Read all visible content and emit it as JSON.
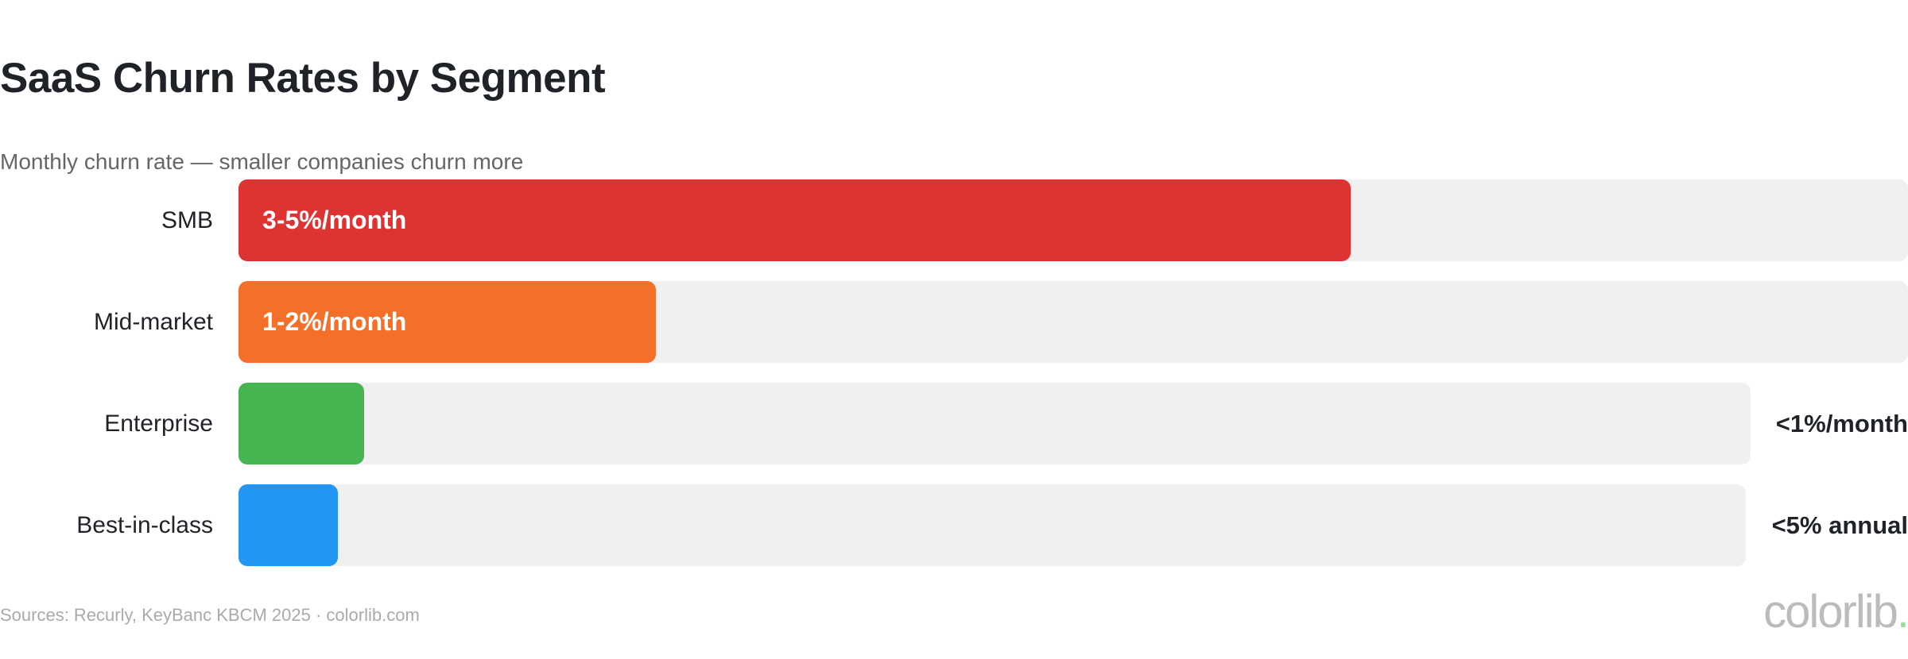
{
  "chart_data": {
    "type": "bar",
    "orientation": "horizontal",
    "title": "SaaS Churn Rates by Segment",
    "subtitle": "Monthly churn rate — smaller companies churn more",
    "categories": [
      "SMB",
      "Mid-market",
      "Enterprise",
      "Best-in-class"
    ],
    "series": [
      {
        "value_labels": [
          "3-5%/month",
          "1-2%/month",
          "<1%/month",
          "<5% annual"
        ],
        "fill_fraction": [
          0.666,
          0.25,
          0.083,
          0.066
        ],
        "label_position": [
          "inside",
          "inside",
          "outside",
          "outside"
        ],
        "colors": [
          "#DF3333",
          "#F4702A",
          "#46B450",
          "#2196F3"
        ]
      }
    ],
    "grid": false,
    "legend": "none"
  },
  "footer": {
    "source": "Sources: Recurly, KeyBanc KBCM 2025 · colorlib.com"
  },
  "logo": {
    "text": "colorlib",
    "dot": "."
  },
  "colors": {
    "track": "#F0F0F0",
    "title": "#1F2328",
    "subtitle": "#666666"
  }
}
